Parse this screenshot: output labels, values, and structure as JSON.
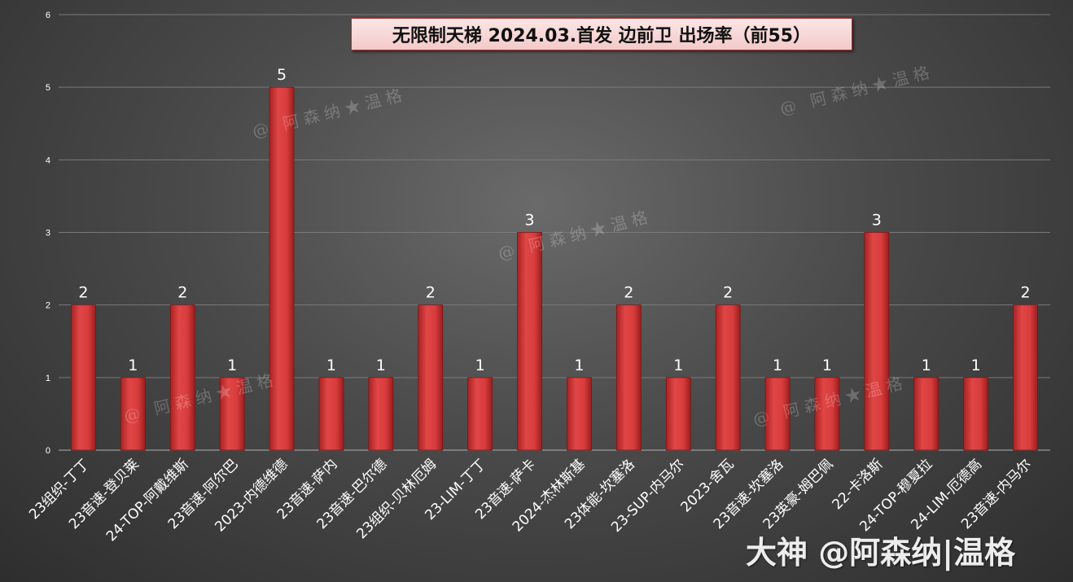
{
  "title": "无限制天梯 2024.03.首发 边前卫 出场率（前55）",
  "watermarks": [
    "@ 阿森纳★温格",
    "@ 阿森纳★温格",
    "@ 阿森纳★温格",
    "@ 阿森纳★温格",
    "@ 阿森纳★温格"
  ],
  "footer_watermark": "大神 @阿森纳|温格",
  "colors": {
    "bar": "#d63a3a",
    "bar_dark": "#9e2020",
    "gridline": "#7a7a7a",
    "text": "#ffffff"
  },
  "chart_data": {
    "type": "bar",
    "title": "无限制天梯 2024.03.首发 边前卫 出场率（前55）",
    "xlabel": "",
    "ylabel": "",
    "ylim": [
      0,
      6
    ],
    "yticks": [
      0,
      1,
      2,
      3,
      4,
      5,
      6
    ],
    "grid": true,
    "legend": "none",
    "data_labels": true,
    "categories": [
      "23组织-丁丁",
      "23音速-登贝莱",
      "24-TOP-阿戴维斯",
      "23音速-阿尔巴",
      "2023-内德维德",
      "23音速-萨内",
      "23音速-巴尔德",
      "23组织-贝林厄姆",
      "23-LIM-丁丁",
      "23音速-萨卡",
      "2024-杰林斯基",
      "23体能-坎塞洛",
      "23-SUP-内马尔",
      "2023-舍瓦",
      "23音速-坎塞洛",
      "23英豪-姆巴佩",
      "22-卡洛斯",
      "24-TOP-穆夏拉",
      "24-LIM-厄德高",
      "23音速-内马尔"
    ],
    "values": [
      2,
      1,
      2,
      1,
      5,
      1,
      1,
      2,
      1,
      3,
      1,
      2,
      1,
      2,
      1,
      1,
      3,
      1,
      1,
      2
    ]
  }
}
